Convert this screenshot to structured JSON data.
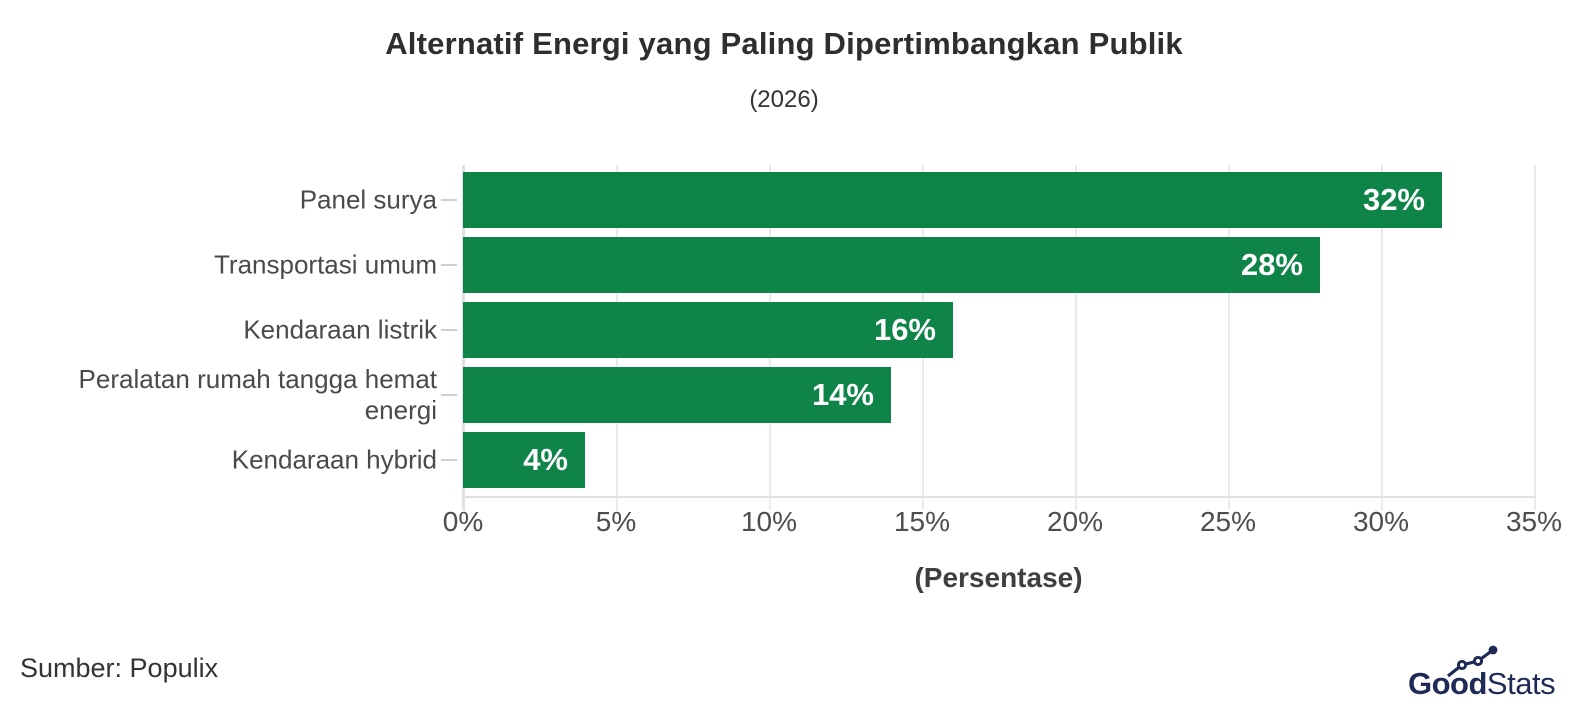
{
  "header": {
    "title": "Alternatif Energi yang Paling Dipertimbangkan Publik",
    "subtitle": "(2026)"
  },
  "footer": {
    "source": "Sumber: Populix",
    "logo_bold": "Good",
    "logo_light": "Stats"
  },
  "colors": {
    "bar": "#0e8448",
    "grid": "#eaeaea",
    "axis": "#e0e0e0",
    "category_tick": "#cfcfcf",
    "title_text": "#2e2e2e",
    "subtitle_text": "#333333",
    "category_text": "#4a4a4a",
    "tick_text": "#4d4d4d",
    "axis_title_text": "#3f3f3f",
    "value_text": "#ffffff",
    "source_text": "#333333",
    "logo_navy": "#1f2b56"
  },
  "chart_data": {
    "type": "bar",
    "orientation": "horizontal",
    "title": "Alternatif Energi yang Paling Dipertimbangkan Publik",
    "subtitle": "(2026)",
    "categories": [
      "Panel surya",
      "Transportasi umum",
      "Kendaraan listrik",
      "Peralatan rumah tangga hemat energi",
      "Kendaraan hybrid"
    ],
    "values": [
      32,
      28,
      16,
      14,
      4
    ],
    "value_labels": [
      "32%",
      "28%",
      "16%",
      "14%",
      "4%"
    ],
    "xlabel": "(Persentase)",
    "xlim": [
      0,
      35
    ],
    "x_tick_values": [
      0,
      5,
      10,
      15,
      20,
      25,
      30,
      35
    ],
    "x_tick_labels": [
      "0%",
      "5%",
      "10%",
      "15%",
      "20%",
      "25%",
      "30%",
      "35%"
    ],
    "grid": true,
    "legend": false,
    "bar_label_position": "inside-end"
  }
}
